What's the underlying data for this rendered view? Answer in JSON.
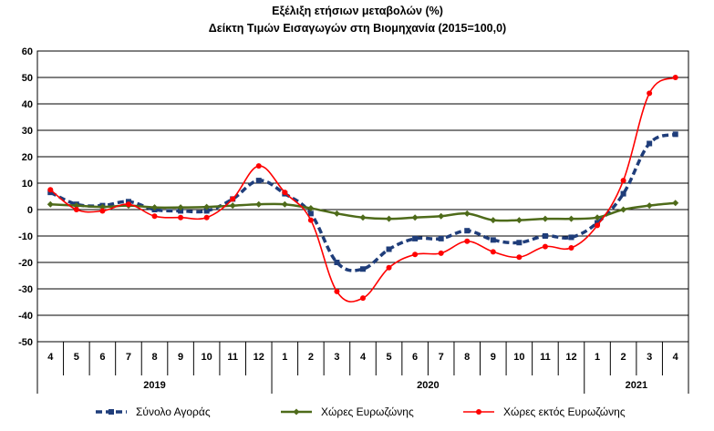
{
  "chart_data": {
    "type": "line",
    "title": "Εξέλιξη ετήσιων μεταβολών (%)",
    "subtitle": "Δείκτη Τιμών Εισαγωγών στη Βιομηχανία (2015=100,0)",
    "xlabel": "",
    "ylabel": "",
    "ylim": [
      -50,
      60
    ],
    "yticks": [
      60,
      50,
      40,
      30,
      20,
      10,
      0,
      -10,
      -20,
      -30,
      -40,
      -50
    ],
    "ytick_labels": [
      "60",
      "50",
      "40",
      "30",
      "20",
      "10",
      "0",
      "-10",
      "-20",
      "-30",
      "-40",
      "-50"
    ],
    "grid": true,
    "legend_position": "bottom",
    "categories": [
      "4",
      "5",
      "6",
      "7",
      "8",
      "9",
      "10",
      "11",
      "12",
      "1",
      "2",
      "3",
      "4",
      "5",
      "6",
      "7",
      "8",
      "9",
      "10",
      "11",
      "12",
      "1",
      "2",
      "3",
      "4"
    ],
    "year_groups": [
      {
        "label": "2019",
        "count": 9
      },
      {
        "label": "2020",
        "count": 12
      },
      {
        "label": "2021",
        "count": 4
      }
    ],
    "series": [
      {
        "name": "Σύνολο Αγοράς",
        "color": "#1f3d7a",
        "style": "dashed-square",
        "values": [
          6.5,
          2.0,
          1.5,
          3.0,
          0.0,
          -0.5,
          -0.5,
          4.0,
          11.0,
          6.0,
          -1.5,
          -20.0,
          -22.5,
          -15.0,
          -11.0,
          -11.0,
          -8.0,
          -11.5,
          -12.5,
          -10.0,
          -10.5,
          -5.0,
          6.0,
          25.0,
          28.5
        ]
      },
      {
        "name": "Χώρες Ευρωζώνης",
        "color": "#4e6b1a",
        "style": "solid-diamond",
        "values": [
          2.0,
          1.5,
          1.0,
          1.5,
          0.8,
          0.8,
          1.0,
          1.5,
          2.0,
          2.0,
          0.5,
          -1.5,
          -3.0,
          -3.5,
          -3.0,
          -2.5,
          -1.5,
          -4.0,
          -4.0,
          -3.5,
          -3.5,
          -3.0,
          0.0,
          1.5,
          2.5
        ]
      },
      {
        "name": "Χώρες εκτός Ευρωζώνης",
        "color": "#ff0000",
        "style": "solid-circle",
        "values": [
          7.5,
          0.0,
          -0.5,
          2.0,
          -2.5,
          -3.0,
          -3.0,
          4.0,
          16.5,
          6.5,
          -4.0,
          -31.0,
          -33.5,
          -22.0,
          -17.0,
          -16.5,
          -12.0,
          -16.0,
          -18.0,
          -14.0,
          -14.5,
          -6.0,
          11.0,
          44.0,
          50.0
        ]
      }
    ]
  }
}
